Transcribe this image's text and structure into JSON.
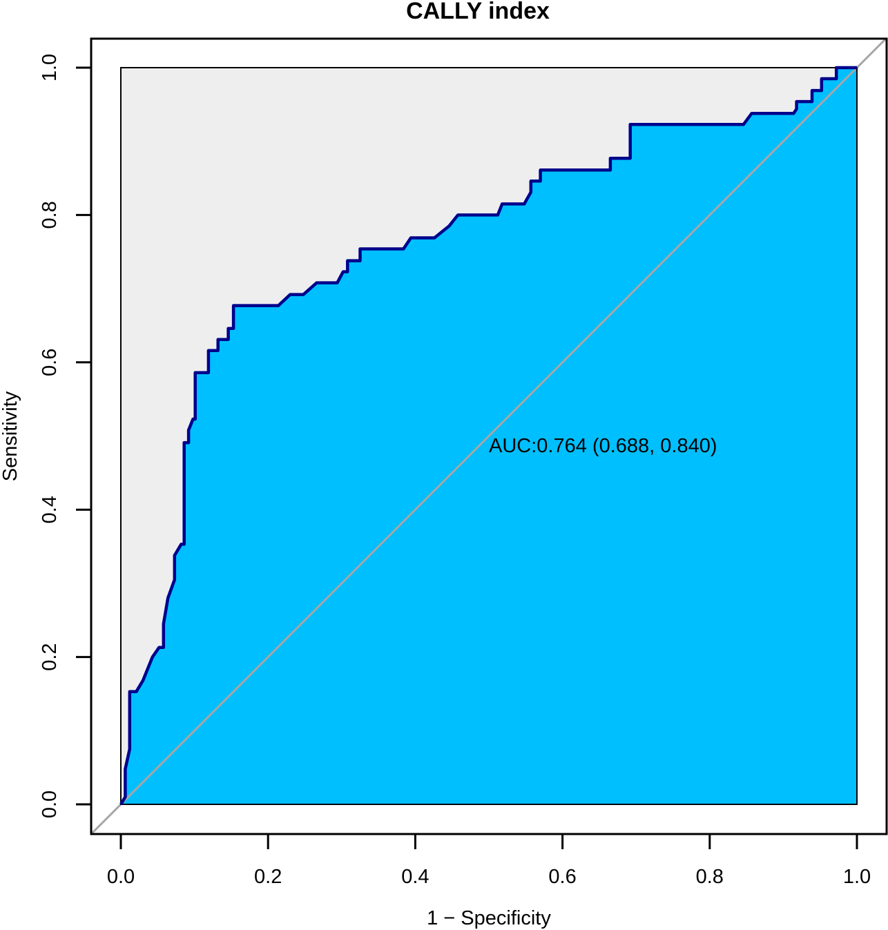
{
  "chart_data": {
    "type": "line",
    "title": "CALLY index",
    "xlabel": "1 − Specificity",
    "ylabel": "Sensitivity",
    "xlim": [
      0,
      1
    ],
    "ylim": [
      0,
      1
    ],
    "xticks": [
      "0.0",
      "0.2",
      "0.4",
      "0.6",
      "0.8",
      "1.0"
    ],
    "yticks": [
      "0.0",
      "0.2",
      "0.4",
      "0.6",
      "0.8",
      "1.0"
    ],
    "annotation": "AUC:0.764 (0.688, 0.840)",
    "series": [
      {
        "x": [
          0.0,
          0.006,
          0.006,
          0.012,
          0.012,
          0.015,
          0.015,
          0.015,
          0.021,
          0.03,
          0.043,
          0.052,
          0.058,
          0.058,
          0.064,
          0.073,
          0.073,
          0.082,
          0.086,
          0.086,
          0.092,
          0.092,
          0.098,
          0.101,
          0.101,
          0.11,
          0.119,
          0.119,
          0.132,
          0.132,
          0.146,
          0.146,
          0.153,
          0.153,
          0.165,
          0.214,
          0.23,
          0.248,
          0.266,
          0.294,
          0.302,
          0.308,
          0.308,
          0.325,
          0.325,
          0.384,
          0.394,
          0.426,
          0.446,
          0.458,
          0.512,
          0.518,
          0.548,
          0.557,
          0.557,
          0.57,
          0.57,
          0.665,
          0.665,
          0.692,
          0.692,
          0.846,
          0.857,
          0.914,
          0.918,
          0.918,
          0.939,
          0.939,
          0.952,
          0.952,
          0.972,
          0.972,
          1.0
        ],
        "y": [
          0.0,
          0.01,
          0.048,
          0.075,
          0.153,
          0.153,
          0.153,
          0.153,
          0.153,
          0.168,
          0.2,
          0.213,
          0.213,
          0.245,
          0.28,
          0.305,
          0.338,
          0.353,
          0.353,
          0.491,
          0.491,
          0.508,
          0.523,
          0.523,
          0.586,
          0.586,
          0.586,
          0.616,
          0.616,
          0.631,
          0.631,
          0.646,
          0.646,
          0.677,
          0.677,
          0.677,
          0.692,
          0.692,
          0.708,
          0.708,
          0.723,
          0.723,
          0.738,
          0.738,
          0.754,
          0.754,
          0.769,
          0.769,
          0.785,
          0.8,
          0.8,
          0.815,
          0.815,
          0.831,
          0.846,
          0.846,
          0.861,
          0.861,
          0.877,
          0.877,
          0.923,
          0.923,
          0.938,
          0.938,
          0.944,
          0.954,
          0.954,
          0.969,
          0.969,
          0.985,
          0.985,
          1.0,
          1.0
        ]
      }
    ],
    "colors": {
      "auc_fill": "#00BFFF",
      "curve": "#00008B",
      "upper_fill": "#EEEEEE",
      "diagonal": "#A6A6A6",
      "frame": "#000000"
    }
  }
}
